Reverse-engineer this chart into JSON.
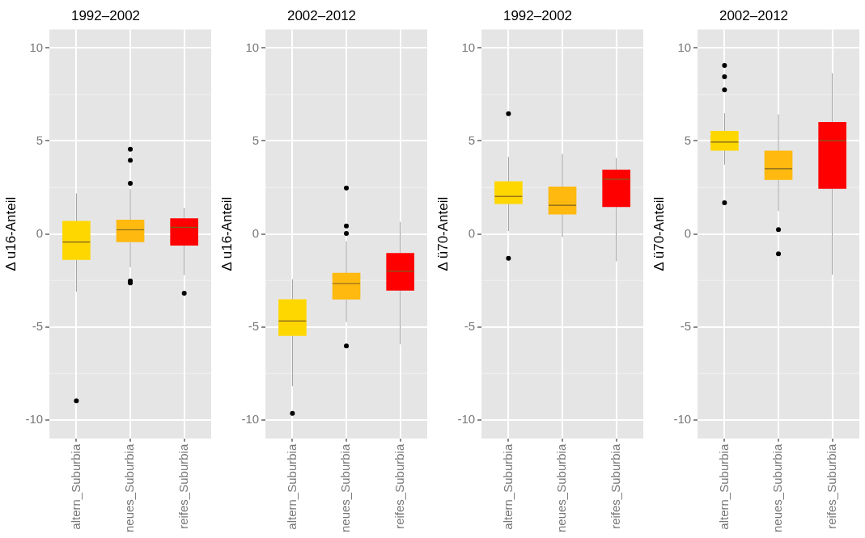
{
  "chart_data": [
    {
      "type": "box",
      "title": "1992–2002",
      "ylabel": "Δ u16-Anteil",
      "categories": [
        "altern_Suburbia",
        "neues_Suburbia",
        "reifes_Suburbia"
      ],
      "colors": [
        "#ffd700",
        "#ffb90f",
        "#ff0000"
      ],
      "ylim": [
        -11,
        11
      ],
      "yticks": [
        -10,
        -5,
        0,
        5,
        10
      ],
      "grid": true,
      "boxes": [
        {
          "low": -3.1,
          "q1": -1.38,
          "median": -0.44,
          "q3": 0.68,
          "high": 2.18,
          "outliers": [
            -8.98
          ]
        },
        {
          "low": -1.79,
          "q1": -0.43,
          "median": 0.22,
          "q3": 0.75,
          "high": 2.41,
          "outliers": [
            4.55,
            3.96,
            2.72,
            -2.53,
            -2.64
          ]
        },
        {
          "low": -2.22,
          "q1": -0.61,
          "median": 0.36,
          "q3": 0.82,
          "high": 1.4,
          "outliers": [
            -3.19
          ]
        }
      ]
    },
    {
      "type": "box",
      "title": "2002–2012",
      "ylabel": "Δ u16-Anteil",
      "categories": [
        "altern_Suburbia",
        "neues_Suburbia",
        "reifes_Suburbia"
      ],
      "colors": [
        "#ffd700",
        "#ffb90f",
        "#ff0000"
      ],
      "ylim": [
        -11,
        11
      ],
      "yticks": [
        -10,
        -5,
        0,
        5,
        10
      ],
      "grid": true,
      "boxes": [
        {
          "low": -8.19,
          "q1": -5.47,
          "median": -4.68,
          "q3": -3.53,
          "high": -2.44,
          "outliers": [
            -9.65
          ]
        },
        {
          "low": -4.74,
          "q1": -3.51,
          "median": -2.67,
          "q3": -2.11,
          "high": -0.39,
          "outliers": [
            2.47,
            0.43,
            0.03,
            -6.03
          ]
        },
        {
          "low": -5.94,
          "q1": -3.03,
          "median": -2.0,
          "q3": -1.04,
          "high": 0.65
        }
      ]
    },
    {
      "type": "box",
      "title": "1992–2002",
      "ylabel": "Δ ü70-Anteil",
      "categories": [
        "altern_Suburbia",
        "neues_Suburbia",
        "reifes_Suburbia"
      ],
      "colors": [
        "#ffd700",
        "#ffb90f",
        "#ff0000"
      ],
      "ylim": [
        -11,
        11
      ],
      "yticks": [
        -10,
        -5,
        0,
        5,
        10
      ],
      "grid": true,
      "boxes": [
        {
          "low": 0.15,
          "q1": 1.62,
          "median": 2.02,
          "q3": 2.81,
          "high": 4.15,
          "outliers": [
            6.47,
            -1.31
          ]
        },
        {
          "low": -0.17,
          "q1": 1.06,
          "median": 1.54,
          "q3": 2.53,
          "high": 4.3
        },
        {
          "low": -1.48,
          "q1": 1.46,
          "median": 2.94,
          "q3": 3.44,
          "high": 4.09
        }
      ]
    },
    {
      "type": "box",
      "title": "2002–2012",
      "ylabel": "Δ ü70-Anteil",
      "categories": [
        "altern_Suburbia",
        "neues_Suburbia",
        "reifes_Suburbia"
      ],
      "colors": [
        "#ffd700",
        "#ffb90f",
        "#ff0000"
      ],
      "ylim": [
        -11,
        11
      ],
      "yticks": [
        -10,
        -5,
        0,
        5,
        10
      ],
      "grid": true,
      "boxes": [
        {
          "low": 3.73,
          "q1": 4.49,
          "median": 4.94,
          "q3": 5.53,
          "high": 6.49,
          "outliers": [
            9.06,
            8.45,
            7.75,
            1.68
          ]
        },
        {
          "low": 1.24,
          "q1": 2.92,
          "median": 3.51,
          "q3": 4.46,
          "high": 6.43,
          "outliers": [
            0.23,
            -1.07
          ]
        },
        {
          "low": -2.19,
          "q1": 2.44,
          "median": 5.02,
          "q3": 6.01,
          "high": 8.64
        }
      ]
    }
  ]
}
